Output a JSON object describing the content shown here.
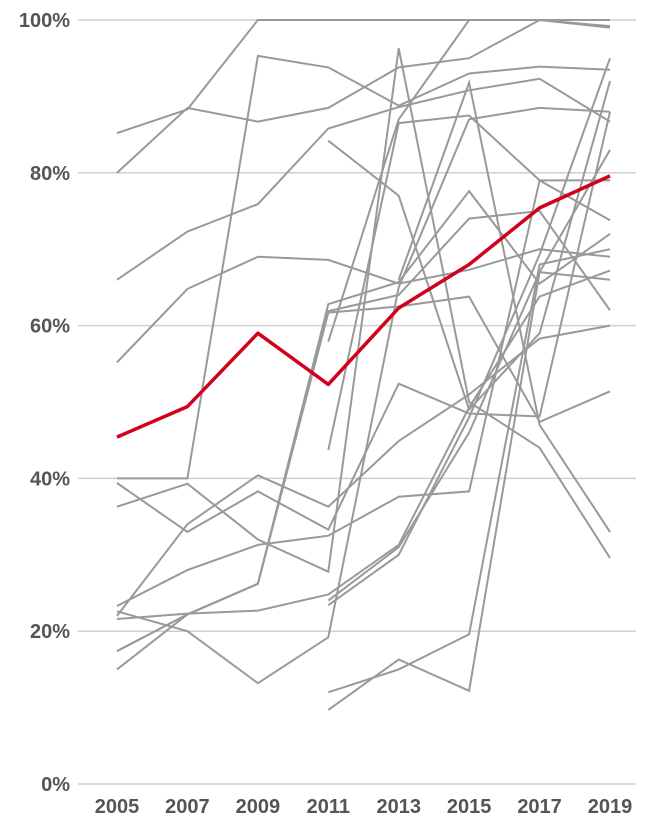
{
  "chart_data": {
    "type": "line",
    "title": "",
    "xlabel": "",
    "ylabel": "",
    "x": [
      2005,
      2007,
      2009,
      2011,
      2013,
      2015,
      2017,
      2019
    ],
    "x_tick_labels": [
      "2005",
      "2007",
      "2009",
      "2011",
      "2013",
      "2015",
      "2017",
      "2019"
    ],
    "y_ticks": [
      0,
      20,
      40,
      60,
      80,
      100
    ],
    "y_tick_labels": [
      "0%",
      "20%",
      "40%",
      "60%",
      "80%",
      "100%"
    ],
    "ylim": [
      0,
      100
    ],
    "xlim": [
      2005,
      2019
    ],
    "grid": "horizontal",
    "legend": "none",
    "colors": {
      "highlight": "#d0021b",
      "others": "#999999"
    },
    "highlight_series": {
      "x": [
        2005,
        2007,
        2009,
        2011,
        2013,
        2015,
        2017,
        2019
      ],
      "values": [
        45.4,
        49.4,
        59.0,
        52.3,
        62.3,
        68.0,
        75.4,
        79.6
      ]
    },
    "other_series": [
      {
        "x": [
          2005,
          2007,
          2009,
          2011,
          2013,
          2015,
          2017,
          2019
        ],
        "values": [
          85.2,
          88.3,
          100,
          100,
          100,
          100,
          100,
          100
        ]
      },
      {
        "x": [
          2005,
          2007,
          2009,
          2011,
          2013,
          2015,
          2017,
          2019
        ],
        "values": [
          80.0,
          88.5,
          86.7,
          88.5,
          93.8,
          95.0,
          100,
          99.2
        ]
      },
      {
        "x": [
          2005,
          2007,
          2009,
          2011,
          2013,
          2015,
          2017,
          2019
        ],
        "values": [
          66.0,
          72.3,
          75.9,
          85.8,
          88.6,
          90.8,
          92.3,
          86.7
        ]
      },
      {
        "x": [
          2005,
          2007,
          2009,
          2011,
          2013,
          2015,
          2017,
          2019
        ],
        "values": [
          55.2,
          64.8,
          69.0,
          68.6,
          65.5,
          67.3,
          70.0,
          69.0
        ]
      },
      {
        "x": [
          2005,
          2007,
          2009,
          2011,
          2013,
          2015,
          2017,
          2019
        ],
        "values": [
          40.0,
          40.0,
          95.3,
          93.8,
          88.8,
          93.0,
          93.9,
          93.5
        ]
      },
      {
        "x": [
          2005,
          2007,
          2009,
          2011,
          2013,
          2015,
          2017,
          2019
        ],
        "values": [
          39.4,
          33.0,
          38.3,
          33.3,
          52.4,
          48.5,
          48.1,
          88.0
        ]
      },
      {
        "x": [
          2005,
          2007,
          2009,
          2011,
          2013,
          2015,
          2017,
          2019
        ],
        "values": [
          36.3,
          39.3,
          32.0,
          27.8,
          96.3,
          50.0,
          44.0,
          29.6
        ]
      },
      {
        "x": [
          2005,
          2007,
          2009,
          2011,
          2013,
          2015,
          2017,
          2019
        ],
        "values": [
          23.3,
          28.0,
          31.3,
          32.5,
          37.6,
          38.3,
          79.0,
          79.0
        ]
      },
      {
        "x": [
          2005,
          2007,
          2009,
          2011,
          2013,
          2015,
          2017,
          2019
        ],
        "values": [
          22.0,
          34.0,
          40.4,
          36.3,
          44.9,
          51.0,
          58.3,
          60.0
        ]
      },
      {
        "x": [
          2005,
          2007,
          2009,
          2011,
          2013,
          2015,
          2017,
          2019
        ],
        "values": [
          21.6,
          22.3,
          22.7,
          24.8,
          31.3,
          49.3,
          63.8,
          67.2
        ]
      },
      {
        "x": [
          2005,
          2007,
          2009,
          2011,
          2013,
          2015,
          2017,
          2019
        ],
        "values": [
          22.6,
          20.0,
          13.2,
          19.2,
          65.0,
          87.0,
          88.5,
          88.0
        ]
      },
      {
        "x": [
          2005,
          2007,
          2009,
          2011,
          2013,
          2015,
          2017,
          2019
        ],
        "values": [
          17.4,
          22.2,
          26.2,
          61.7,
          62.5,
          63.8,
          47.4,
          51.4
        ]
      },
      {
        "x": [
          2005,
          2007,
          2009,
          2011,
          2013,
          2015,
          2017,
          2019
        ],
        "values": [
          15.0,
          22.2,
          26.2,
          61.9,
          64.0,
          74.0,
          75.0,
          62.0
        ]
      },
      {
        "x": [
          2005,
          2007,
          2009,
          2011,
          2013,
          2015,
          2017,
          2019
        ],
        "values": [
          17.4,
          22.2,
          26.2,
          62.8,
          65.7,
          77.6,
          65.5,
          72.0
        ]
      },
      {
        "x": [
          2011,
          2013,
          2015,
          2017,
          2019
        ],
        "values": [
          84.2,
          77.0,
          49.0,
          59.0,
          92.0
        ]
      },
      {
        "x": [
          2011,
          2013,
          2015,
          2017,
          2019
        ],
        "values": [
          57.9,
          87.0,
          100,
          100,
          99.0
        ]
      },
      {
        "x": [
          2011,
          2013,
          2015,
          2017,
          2019
        ],
        "values": [
          43.7,
          86.5,
          87.5,
          79.0,
          73.8
        ]
      },
      {
        "x": [
          2011,
          2013,
          2015,
          2017,
          2019
        ],
        "values": [
          23.4,
          30.0,
          48.0,
          69.3,
          95.0
        ]
      },
      {
        "x": [
          2011,
          2013,
          2015,
          2017,
          2019
        ],
        "values": [
          24.0,
          31.0,
          46.0,
          67.0,
          83.0
        ]
      },
      {
        "x": [
          2011,
          2013,
          2015,
          2017,
          2019
        ],
        "values": [
          12.0,
          15.0,
          19.6,
          68.0,
          70.0
        ]
      },
      {
        "x": [
          2011,
          2013,
          2015,
          2017,
          2019
        ],
        "values": [
          9.7,
          16.3,
          12.2,
          67.0,
          66.0
        ]
      },
      {
        "x": [
          2013,
          2015,
          2017,
          2019
        ],
        "values": [
          66.0,
          91.8,
          47.0,
          33.0
        ]
      }
    ]
  }
}
